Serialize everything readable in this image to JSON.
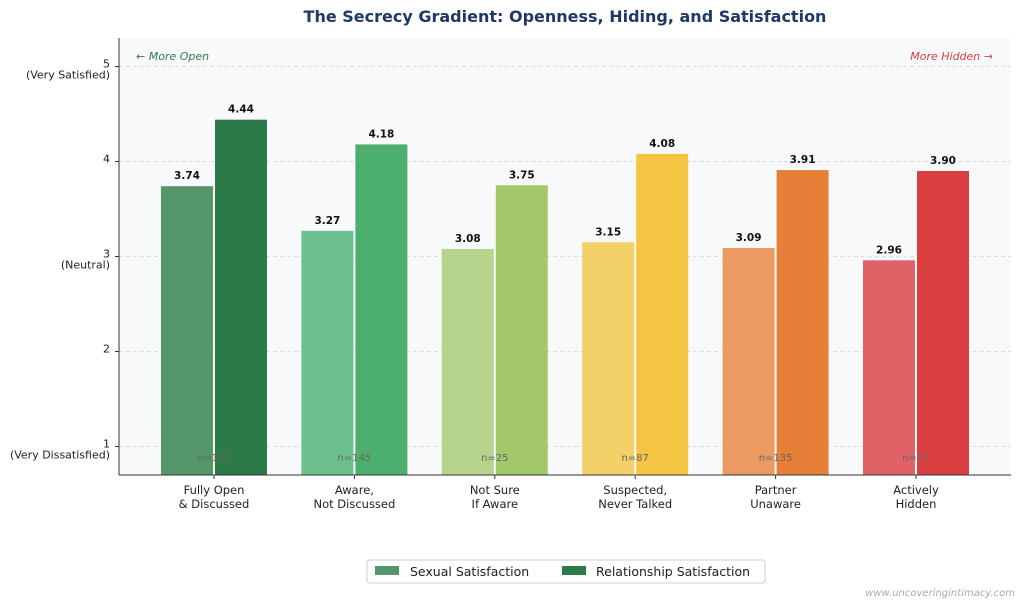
{
  "chart_data": {
    "type": "bar",
    "title": "The Secrecy Gradient: Openness, Hiding, and Satisfaction",
    "categories": [
      "Fully Open\n& Discussed",
      "Aware,\nNot Discussed",
      "Not Sure\nIf Aware",
      "Suspected,\nNever Talked",
      "Partner\nUnaware",
      "Actively\nHidden"
    ],
    "sample_sizes": [
      "n=123",
      "n=145",
      "n=25",
      "n=87",
      "n=135",
      "n=72"
    ],
    "series": [
      {
        "name": "Sexual Satisfaction",
        "values": [
          3.74,
          3.27,
          3.08,
          3.15,
          3.09,
          2.96
        ],
        "colors": [
          "#55966a",
          "#6dbf8e",
          "#b6d48b",
          "#f4d068",
          "#ec9a62",
          "#e06266"
        ]
      },
      {
        "name": "Relationship Satisfaction",
        "values": [
          4.44,
          4.18,
          3.75,
          4.08,
          3.91,
          3.9
        ],
        "colors": [
          "#2c7a47",
          "#4caf6e",
          "#a3c76a",
          "#f4c542",
          "#e87f38",
          "#d93f40"
        ]
      }
    ],
    "ylim": [
      0.7,
      5.3
    ],
    "yticks": [
      {
        "value": 5,
        "label": "5",
        "sublabel": "(Very Satisfied)"
      },
      {
        "value": 4,
        "label": "4",
        "sublabel": ""
      },
      {
        "value": 3,
        "label": "3",
        "sublabel": "(Neutral)"
      },
      {
        "value": 2,
        "label": "2",
        "sublabel": ""
      },
      {
        "value": 1,
        "label": "1",
        "sublabel": "(Very Dissatisfied)"
      }
    ],
    "grid": "horizontal dashed",
    "legend_placement": "bottom-center",
    "annotations": {
      "left": "← More Open",
      "left_color": "#2e7d46",
      "right": "More Hidden →",
      "right_color": "#d93f40"
    }
  },
  "watermark": "www.uncoveringintimacy.com"
}
